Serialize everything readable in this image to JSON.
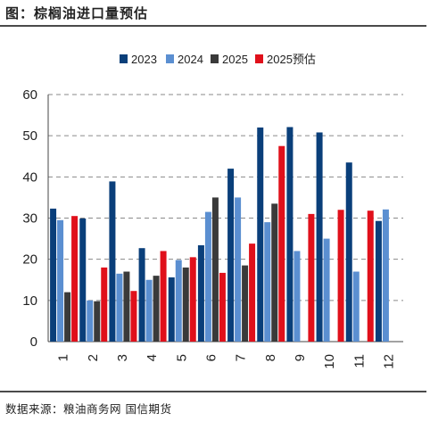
{
  "header": {
    "title": "图：棕榈油进口量预估"
  },
  "footer": {
    "source": "数据来源：粮油商务网  国信期货"
  },
  "chart_data": {
    "type": "bar",
    "categories": [
      "1",
      "2",
      "3",
      "4",
      "5",
      "6",
      "7",
      "8",
      "9",
      "10",
      "11",
      "12"
    ],
    "ylim": [
      0,
      60
    ],
    "yticks": [
      0,
      10,
      20,
      30,
      40,
      50,
      60
    ],
    "grid": "horizontal-dashed",
    "legend_position": "top",
    "series": [
      {
        "name": "2023",
        "color": "#0a3f7a",
        "values": [
          32.3,
          29.9,
          38.9,
          22.7,
          15.6,
          23.4,
          42.0,
          52.0,
          52.1,
          50.8,
          43.5,
          29.3
        ]
      },
      {
        "name": "2024",
        "color": "#5b8fd1",
        "values": [
          29.5,
          10.0,
          16.5,
          15.0,
          19.8,
          31.5,
          35.0,
          29.0,
          22.0,
          25.0,
          17.0,
          32.1
        ]
      },
      {
        "name": "2025",
        "color": "#3a3a3a",
        "values": [
          12.0,
          9.8,
          17.0,
          16.0,
          18.0,
          35.0,
          18.5,
          33.5,
          null,
          null,
          null,
          null
        ]
      },
      {
        "name": "2025预估",
        "color": "#e0101b",
        "values": [
          30.5,
          18.0,
          12.3,
          22.0,
          20.5,
          16.7,
          23.8,
          47.5,
          31.0,
          32.0,
          31.8,
          null
        ]
      }
    ]
  }
}
